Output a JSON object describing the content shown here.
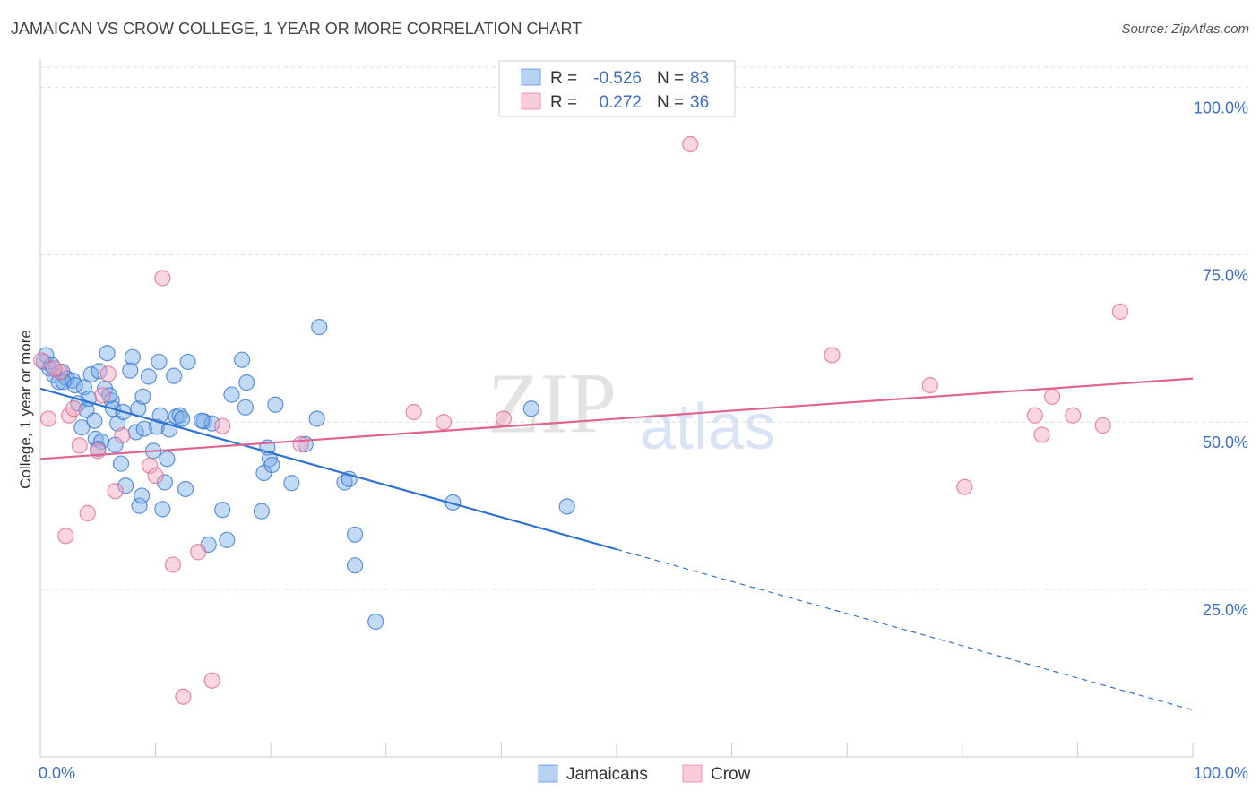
{
  "title": "JAMAICAN VS CROW COLLEGE, 1 YEAR OR MORE CORRELATION CHART",
  "source": "Source: ZipAtlas.com",
  "watermark": {
    "zip": "ZIP",
    "atlas": "atlas"
  },
  "colors": {
    "blue": "#7aaee8",
    "blue_line": "#2f72d0",
    "pink": "#f2a3bc",
    "pink_line": "#e0648f",
    "axis_text": "#3d6fc7",
    "grid": "#dddddd"
  },
  "legend": {
    "rows": [
      {
        "r_label": "R =",
        "r_value": "-0.526",
        "n_label": "N =",
        "n_value": "83"
      },
      {
        "r_label": "R =",
        "r_value": "0.272",
        "n_label": "N =",
        "n_value": "36"
      }
    ]
  },
  "chart_data": {
    "type": "scatter",
    "title": "JAMAICAN VS CROW COLLEGE, 1 YEAR OR MORE CORRELATION CHART",
    "xlabel": "",
    "ylabel": "College, 1 year or more",
    "xlim": [
      0,
      100
    ],
    "ylim": [
      0,
      103
    ],
    "x_tick_labels": [
      "0.0%",
      "100.0%"
    ],
    "y_ticks": [
      25,
      50,
      75,
      100
    ],
    "y_tick_labels": [
      "25.0%",
      "50.0%",
      "75.0%",
      "100.0%"
    ],
    "grid": true,
    "bottom_legend": [
      "Jamaicans",
      "Crow"
    ],
    "series": [
      {
        "name": "Jamaicans",
        "r": -0.526,
        "n": 83,
        "trend": {
          "x0": 0,
          "y0": 55,
          "x1": 100,
          "y1": 7,
          "solid_until_x": 50
        },
        "points": [
          [
            0.3,
            59
          ],
          [
            0.8,
            58
          ],
          [
            1.2,
            57
          ],
          [
            1.6,
            56
          ],
          [
            1.9,
            57.5
          ],
          [
            2.3,
            56.5
          ],
          [
            2.8,
            56.2
          ],
          [
            3.3,
            52.8
          ],
          [
            3.6,
            49.2
          ],
          [
            3.8,
            55.2
          ],
          [
            4.0,
            51.8
          ],
          [
            4.4,
            57.1
          ],
          [
            4.7,
            50.2
          ],
          [
            4.8,
            47.5
          ],
          [
            5.1,
            57.6
          ],
          [
            5.3,
            47.1
          ],
          [
            5.6,
            55
          ],
          [
            5.8,
            60.3
          ],
          [
            6.2,
            53.2
          ],
          [
            6.3,
            52
          ],
          [
            6.5,
            46.6
          ],
          [
            6.7,
            49.8
          ],
          [
            7.0,
            43.8
          ],
          [
            7.4,
            40.5
          ],
          [
            7.8,
            57.7
          ],
          [
            8.0,
            59.7
          ],
          [
            8.3,
            48.5
          ],
          [
            8.5,
            52
          ],
          [
            8.6,
            37.5
          ],
          [
            8.8,
            39
          ],
          [
            8.9,
            53.8
          ],
          [
            9.4,
            56.8
          ],
          [
            9.8,
            45.7
          ],
          [
            10.1,
            49.3
          ],
          [
            10.3,
            59
          ],
          [
            10.4,
            51
          ],
          [
            10.6,
            37
          ],
          [
            10.8,
            41
          ],
          [
            11.0,
            44.5
          ],
          [
            11.2,
            48.9
          ],
          [
            11.6,
            56.9
          ],
          [
            11.8,
            50.8
          ],
          [
            12.1,
            51
          ],
          [
            12.6,
            40
          ],
          [
            12.8,
            59
          ],
          [
            14.2,
            50.1
          ],
          [
            14.6,
            31.7
          ],
          [
            14.9,
            49.8
          ],
          [
            15.8,
            36.9
          ],
          [
            16.2,
            32.4
          ],
          [
            16.6,
            54.1
          ],
          [
            17.5,
            59.3
          ],
          [
            17.8,
            52.2
          ],
          [
            17.9,
            55.9
          ],
          [
            19.2,
            36.7
          ],
          [
            19.4,
            42.4
          ],
          [
            19.7,
            46.2
          ],
          [
            19.9,
            44.5
          ],
          [
            20.1,
            43.6
          ],
          [
            20.4,
            52.6
          ],
          [
            21.8,
            40.9
          ],
          [
            23.0,
            46.7
          ],
          [
            24.0,
            50.5
          ],
          [
            24.2,
            64.2
          ],
          [
            26.4,
            41
          ],
          [
            26.8,
            41.5
          ],
          [
            27.3,
            33.2
          ],
          [
            27.3,
            28.6
          ],
          [
            29.1,
            20.2
          ],
          [
            35.8,
            38
          ],
          [
            42.6,
            52
          ],
          [
            45.7,
            37.4
          ],
          [
            0.5,
            60
          ],
          [
            1.0,
            58.5
          ],
          [
            2.0,
            56
          ],
          [
            3.0,
            55.5
          ],
          [
            4.2,
            53.5
          ],
          [
            5.0,
            46
          ],
          [
            6.0,
            54
          ],
          [
            7.2,
            51.5
          ],
          [
            9.0,
            49
          ],
          [
            12.3,
            50.5
          ],
          [
            14.0,
            50.2
          ]
        ]
      },
      {
        "name": "Crow",
        "r": 0.272,
        "n": 36,
        "trend": {
          "x0": 0,
          "y0": 44.5,
          "x1": 100,
          "y1": 56.5
        },
        "points": [
          [
            0.1,
            59.2
          ],
          [
            0.7,
            50.5
          ],
          [
            1.7,
            57.5
          ],
          [
            2.2,
            33
          ],
          [
            2.5,
            51
          ],
          [
            2.9,
            52
          ],
          [
            3.4,
            46.5
          ],
          [
            4.1,
            36.4
          ],
          [
            5.0,
            45.7
          ],
          [
            5.4,
            54
          ],
          [
            5.9,
            57.2
          ],
          [
            6.5,
            39.7
          ],
          [
            7.1,
            48
          ],
          [
            9.5,
            43.5
          ],
          [
            10.0,
            42
          ],
          [
            10.6,
            71.5
          ],
          [
            11.5,
            28.7
          ],
          [
            12.4,
            9
          ],
          [
            13.7,
            30.6
          ],
          [
            14.9,
            11.4
          ],
          [
            15.8,
            49.4
          ],
          [
            22.6,
            46.7
          ],
          [
            32.4,
            51.5
          ],
          [
            35.0,
            50
          ],
          [
            40.2,
            50.5
          ],
          [
            56.4,
            91.5
          ],
          [
            68.7,
            60
          ],
          [
            77.2,
            55.5
          ],
          [
            80.2,
            40.3
          ],
          [
            86.3,
            51
          ],
          [
            86.9,
            48.1
          ],
          [
            87.8,
            53.8
          ],
          [
            89.6,
            51
          ],
          [
            92.2,
            49.5
          ],
          [
            93.7,
            66.5
          ],
          [
            1.2,
            58
          ]
        ]
      }
    ]
  }
}
